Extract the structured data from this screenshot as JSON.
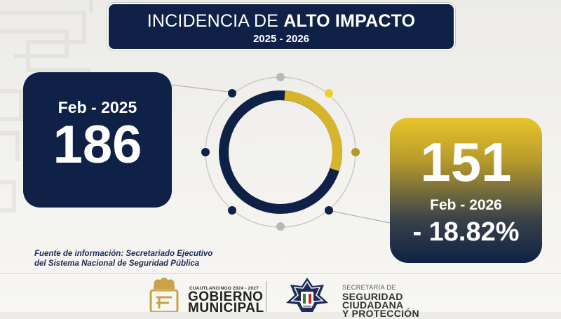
{
  "header": {
    "title_prefix": "INCIDENCIA DE ",
    "title_bold": "ALTO IMPACTO",
    "years": "2025 - 2026"
  },
  "left_card": {
    "period": "Feb - 2025",
    "value": "186"
  },
  "right_card": {
    "value": "151",
    "period": "Feb - 2026",
    "change": "- 18.82%"
  },
  "source": {
    "line1": "Fuente de información: Secretariado Ejecutivo",
    "line2": "del Sistema Nacional de Seguridad Pública"
  },
  "footer": {
    "gov_small": "CUAUTLANCINGO 2024 - 2027",
    "gov_line1": "GOBIERNO",
    "gov_line2": "MUNICIPAL",
    "sec_small": "SECRETARÍA DE",
    "sec_line1": "SEGURIDAD",
    "sec_line2": "CIUDADANA",
    "sec_line3": "Y PROTECCIÓN"
  },
  "colors": {
    "navy": "#0f2146",
    "gold": "#e3c12a",
    "gray": "#b8b8b8"
  },
  "icons": [
    "background-maze-pattern",
    "municipal-crest-icon",
    "police-star-badge-icon"
  ]
}
